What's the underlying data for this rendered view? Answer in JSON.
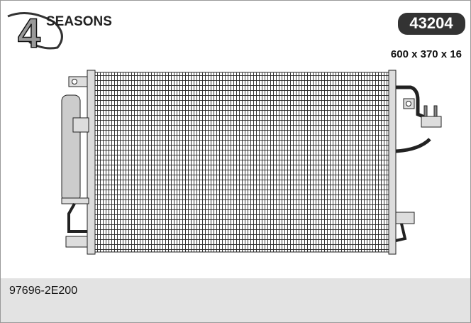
{
  "logo": {
    "number": "4",
    "text": "SEASONS"
  },
  "product": {
    "part_number": "43204",
    "dimensions": "600 x 370 x 16"
  },
  "footer": {
    "reference": "97696-2E200"
  }
}
